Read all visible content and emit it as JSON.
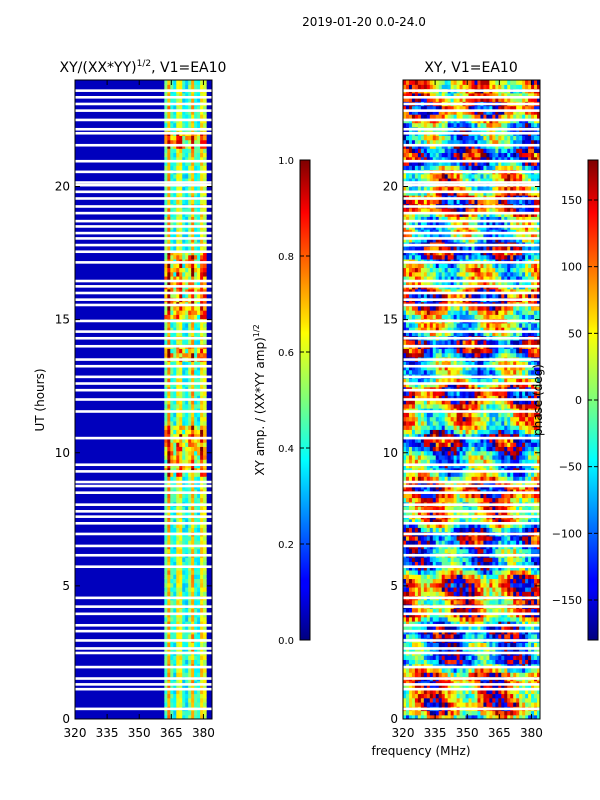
{
  "figure_title": "2019-01-20 0.0-24.0",
  "shared_xlabel": "frequency (MHz)",
  "chart_data": [
    {
      "type": "heatmap",
      "title_main": "XY/(XX*YY)",
      "title_exp": "1/2",
      "title_rest": ", V1=EA10",
      "ylabel": "UT (hours)",
      "xlim": [
        320,
        384
      ],
      "ylim": [
        0,
        24
      ],
      "xticks": [
        320,
        335,
        350,
        365,
        380
      ],
      "yticks": [
        0,
        5,
        10,
        15,
        20
      ],
      "colorbar": {
        "label_main": "XY amp. / (XX*YY amp)",
        "label_exp": "1/2",
        "range": [
          0.0,
          1.0
        ],
        "ticks": [
          "0.0",
          "0.2",
          "0.4",
          "0.6",
          "0.8",
          "1.0"
        ],
        "tick_values": [
          0.0,
          0.2,
          0.4,
          0.6,
          0.8,
          1.0
        ],
        "colormap": "jet"
      },
      "description": "Normalized XY amplitude vs frequency and UT; mostly near 0 below 361 MHz, stripes of 0.3-1.0 between 361 and 381 MHz",
      "signal_band_mhz": [
        361,
        381
      ],
      "peak_channels_mhz": [
        363,
        368,
        374,
        379
      ]
    },
    {
      "type": "heatmap",
      "title_main": "XY, V1=EA10",
      "ylabel": "",
      "xlim": [
        320,
        384
      ],
      "ylim": [
        0,
        24
      ],
      "xticks": [
        320,
        335,
        350,
        365,
        380
      ],
      "yticks": [
        0,
        5,
        10,
        15,
        20
      ],
      "colorbar": {
        "label_main": "phase (deg)",
        "range": [
          -180,
          180
        ],
        "ticks": [
          "−150",
          "−100",
          "−50",
          "0",
          "50",
          "100",
          "150"
        ],
        "tick_values": [
          -150,
          -100,
          -50,
          0,
          50,
          100,
          150
        ],
        "colormap": "jet"
      },
      "description": "XY phase vs frequency and UT, spanning -180 to 180 degrees"
    }
  ],
  "flagged_gaps_hours": [
    0.38,
    1.12,
    1.3,
    1.52,
    1.95,
    2.48,
    2.65,
    2.95,
    3.3,
    3.52,
    3.95,
    4.22,
    4.55,
    5.72,
    6.15,
    6.5,
    6.95,
    7.35,
    7.6,
    7.8,
    8.05,
    8.5,
    8.75,
    8.9,
    9.3,
    9.55,
    10.55,
    11.55,
    12.0,
    12.35,
    12.6,
    12.85,
    13.25,
    13.5,
    14.0,
    14.3,
    14.55,
    14.95,
    15.55,
    15.75,
    16.0,
    16.25,
    16.45,
    17.15,
    17.55,
    17.8,
    18.05,
    18.25,
    18.5,
    18.7,
    19.0,
    19.25,
    19.55,
    19.8,
    20.05,
    20.15,
    20.55,
    20.95,
    21.55,
    22.0,
    22.15,
    22.5,
    22.85,
    23.1,
    23.35,
    23.6
  ]
}
